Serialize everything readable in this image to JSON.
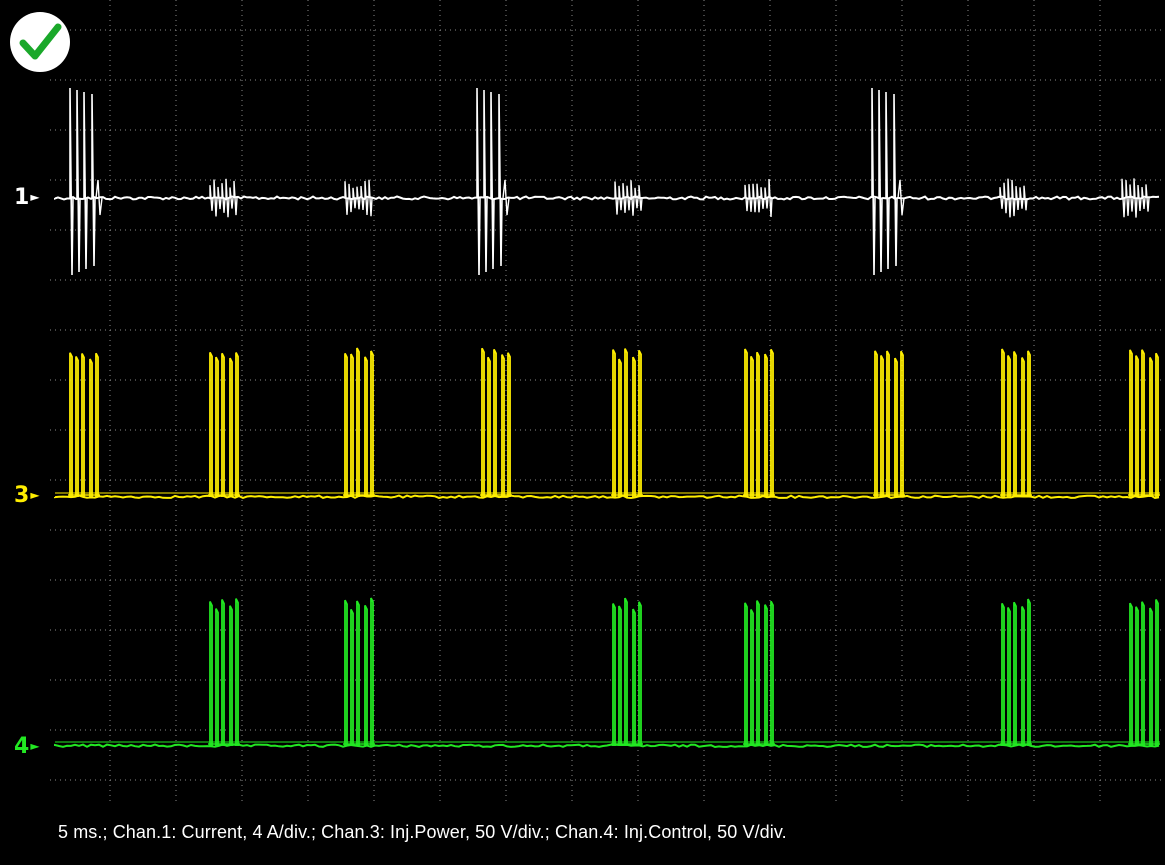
{
  "status": {
    "icon": "check-icon",
    "color": "#1aa82a"
  },
  "channels": [
    {
      "id": 1,
      "label": "1",
      "color": "#ffffff"
    },
    {
      "id": 3,
      "label": "3",
      "color": "#ffee00"
    },
    {
      "id": 4,
      "label": "4",
      "color": "#22e822"
    }
  ],
  "caption": "5 ms.; Chan.1: Current, 4 A/div.; Chan.3: Inj.Power, 50 V/div.; Chan.4: Inj.Control, 50 V/div.",
  "colors": {
    "background": "#000000",
    "grid": "#8a8a8a"
  }
}
